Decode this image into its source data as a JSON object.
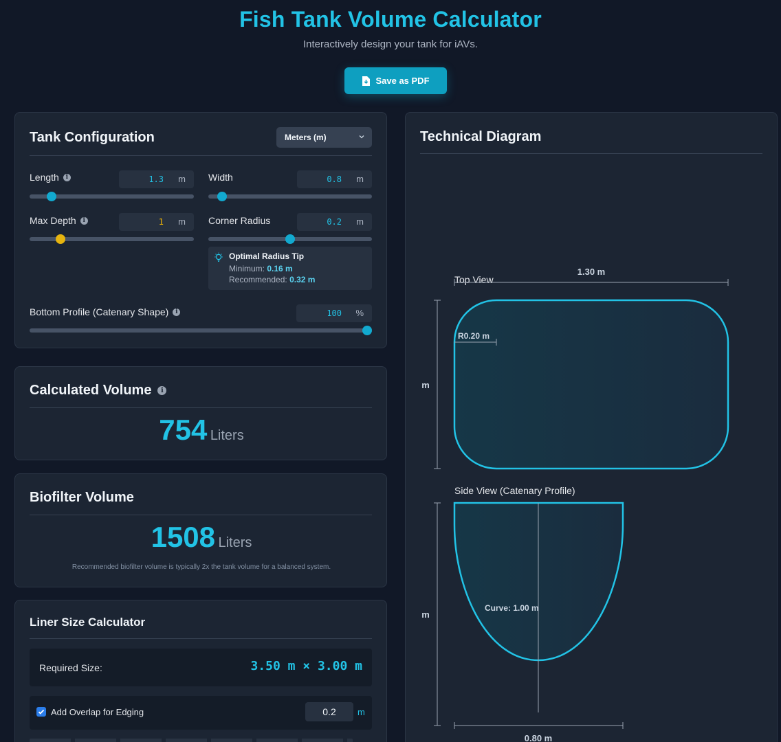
{
  "header": {
    "title": "Fish Tank Volume Calculator",
    "subtitle": "Interactively design your tank for iAVs.",
    "pdf_button": "Save as PDF"
  },
  "config": {
    "title": "Tank Configuration",
    "unit_select": "Meters (m)",
    "length": {
      "label": "Length",
      "value": "1.3",
      "unit": "m",
      "fraction": 0.11
    },
    "width": {
      "label": "Width",
      "value": "0.8",
      "unit": "m",
      "fraction": 0.06
    },
    "max_depth": {
      "label": "Max Depth",
      "value": "1",
      "unit": "m",
      "fraction": 0.17
    },
    "corner_radius": {
      "label": "Corner Radius",
      "value": "0.2",
      "unit": "m",
      "fraction": 0.5
    },
    "tip": {
      "title": "Optimal Radius Tip",
      "min_label": "Minimum:",
      "min_value": "0.16 m",
      "rec_label": "Recommended:",
      "rec_value": "0.32 m"
    },
    "bottom_profile": {
      "label": "Bottom Profile (Catenary Shape)",
      "value": "100",
      "unit": "%",
      "fraction": 1.0
    }
  },
  "volume": {
    "title": "Calculated Volume",
    "value": "754",
    "unit": "Liters"
  },
  "biofilter": {
    "title": "Biofilter Volume",
    "value": "1508",
    "unit": "Liters",
    "note": "Recommended biofilter volume is typically 2x the tank volume for a balanced system."
  },
  "liner": {
    "title": "Liner Size Calculator",
    "required_label": "Required Size:",
    "required_value": "3.50 m × 3.00 m",
    "overlap_label": "Add Overlap for Edging",
    "overlap_value": "0.2",
    "overlap_unit": "m",
    "overlap_checked": true
  },
  "diagram": {
    "title": "Technical Diagram",
    "top_view_label": "Top View",
    "top_length": "1.30 m",
    "top_height_unit": "m",
    "radius_label": "R0.20 m",
    "side_view_label": "Side View (Catenary Profile)",
    "side_height_unit": "m",
    "curve_label": "Curve: 1.00 m",
    "side_width": "0.80 m"
  },
  "colors": {
    "accent": "#22c3e6",
    "button": "#0e9fc0",
    "depth": "#e6b40f",
    "bg": "#111827",
    "card": "#1c2533"
  }
}
